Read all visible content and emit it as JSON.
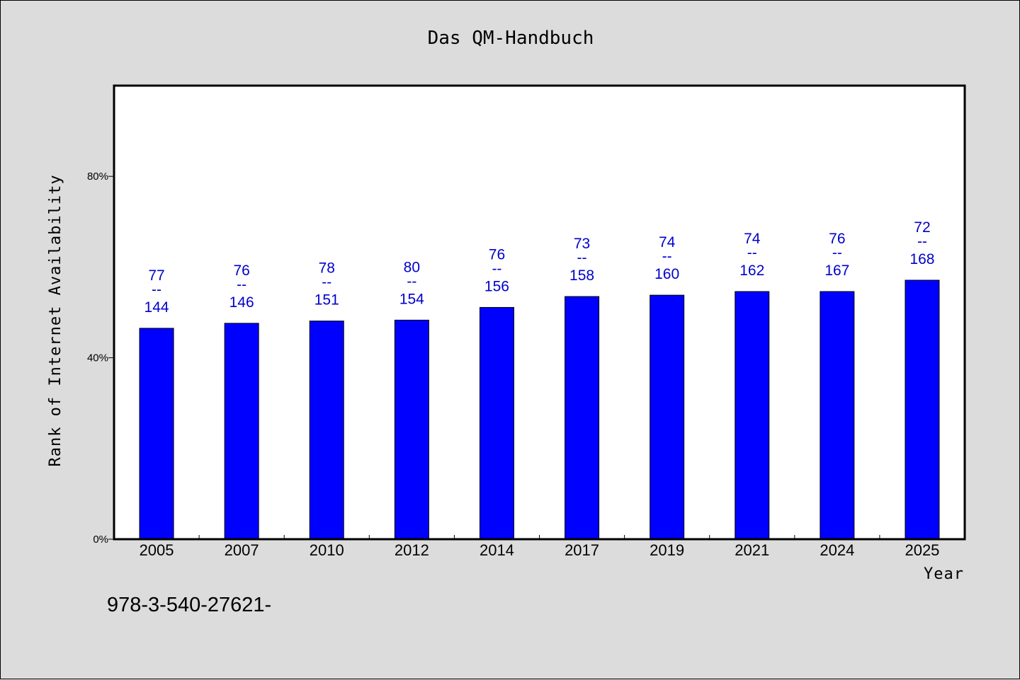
{
  "chart_data": {
    "type": "bar",
    "title": "Das QM-Handbuch",
    "xlabel": "Year",
    "ylabel": "Rank of Internet Availability",
    "categories": [
      "2005",
      "2007",
      "2010",
      "2012",
      "2014",
      "2017",
      "2019",
      "2021",
      "2024",
      "2025"
    ],
    "values": [
      46.5,
      47.6,
      48.1,
      48.3,
      51.1,
      53.5,
      53.8,
      54.6,
      54.6,
      57.1
    ],
    "bar_labels": [
      {
        "top": "77",
        "sep": "--",
        "bottom": "144"
      },
      {
        "top": "76",
        "sep": "--",
        "bottom": "146"
      },
      {
        "top": "78",
        "sep": "--",
        "bottom": "151"
      },
      {
        "top": "80",
        "sep": "--",
        "bottom": "154"
      },
      {
        "top": "76",
        "sep": "--",
        "bottom": "156"
      },
      {
        "top": "73",
        "sep": "--",
        "bottom": "158"
      },
      {
        "top": "74",
        "sep": "--",
        "bottom": "160"
      },
      {
        "top": "74",
        "sep": "--",
        "bottom": "162"
      },
      {
        "top": "76",
        "sep": "--",
        "bottom": "167"
      },
      {
        "top": "72",
        "sep": "--",
        "bottom": "168"
      }
    ],
    "ylim": [
      0,
      100
    ],
    "yticks": [
      0,
      40,
      80
    ],
    "ytick_labels": [
      "0%",
      "40%",
      "80%"
    ],
    "grid": false,
    "legend": "none",
    "colors": {
      "bar": "#0000ff",
      "bar_edge": "#000000",
      "data_label": "#0000cc",
      "plot_bg": "#ffffff",
      "page_bg": "#dcdcdc"
    }
  },
  "footer": {
    "isbn": "978-3-540-27621-"
  }
}
